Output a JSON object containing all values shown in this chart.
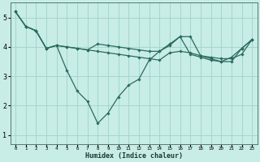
{
  "title": "",
  "xlabel": "Humidex (Indice chaleur)",
  "xlim": [
    -0.5,
    23.5
  ],
  "ylim": [
    0.7,
    5.5
  ],
  "xticks": [
    0,
    1,
    2,
    3,
    4,
    5,
    6,
    7,
    8,
    9,
    10,
    11,
    12,
    13,
    14,
    15,
    16,
    17,
    18,
    19,
    20,
    21,
    22,
    23
  ],
  "yticks": [
    1,
    2,
    3,
    4,
    5
  ],
  "background_color": "#c8ece6",
  "grid_color": "#9dd4cc",
  "line_color": "#2a6b5e",
  "line_width": 0.9,
  "marker": "D",
  "marker_size": 1.8,
  "series": [
    {
      "x": [
        0,
        1,
        2,
        3,
        4,
        5,
        6,
        7,
        8,
        9,
        10,
        11,
        12,
        13,
        14,
        15,
        16,
        17,
        18,
        19,
        20,
        21,
        22,
        23
      ],
      "y": [
        5.2,
        4.7,
        4.55,
        3.95,
        4.05,
        4.0,
        3.95,
        3.9,
        3.85,
        3.8,
        3.75,
        3.7,
        3.65,
        3.6,
        3.55,
        3.8,
        3.85,
        3.8,
        3.7,
        3.65,
        3.6,
        3.6,
        3.75,
        4.25
      ]
    },
    {
      "x": [
        0,
        1,
        2,
        3,
        4,
        5,
        6,
        7,
        8,
        9,
        10,
        11,
        12,
        13,
        14,
        15,
        16,
        17,
        18,
        19,
        20,
        21,
        22,
        23
      ],
      "y": [
        5.2,
        4.7,
        4.55,
        3.95,
        4.05,
        3.2,
        2.5,
        2.15,
        1.4,
        1.75,
        2.3,
        2.7,
        2.9,
        3.55,
        3.85,
        4.05,
        4.35,
        4.35,
        3.7,
        3.6,
        3.5,
        3.5,
        3.95,
        4.25
      ]
    },
    {
      "x": [
        0,
        1,
        2,
        3,
        4,
        5,
        6,
        7,
        8,
        9,
        10,
        11,
        12,
        13,
        14,
        15,
        16,
        17,
        18,
        19,
        20,
        21,
        22,
        23
      ],
      "y": [
        5.2,
        4.7,
        4.55,
        3.95,
        4.05,
        4.0,
        3.95,
        3.9,
        4.1,
        4.05,
        4.0,
        3.95,
        3.9,
        3.85,
        3.85,
        4.1,
        4.35,
        3.75,
        3.65,
        3.55,
        3.5,
        3.65,
        3.95,
        4.25
      ]
    }
  ]
}
